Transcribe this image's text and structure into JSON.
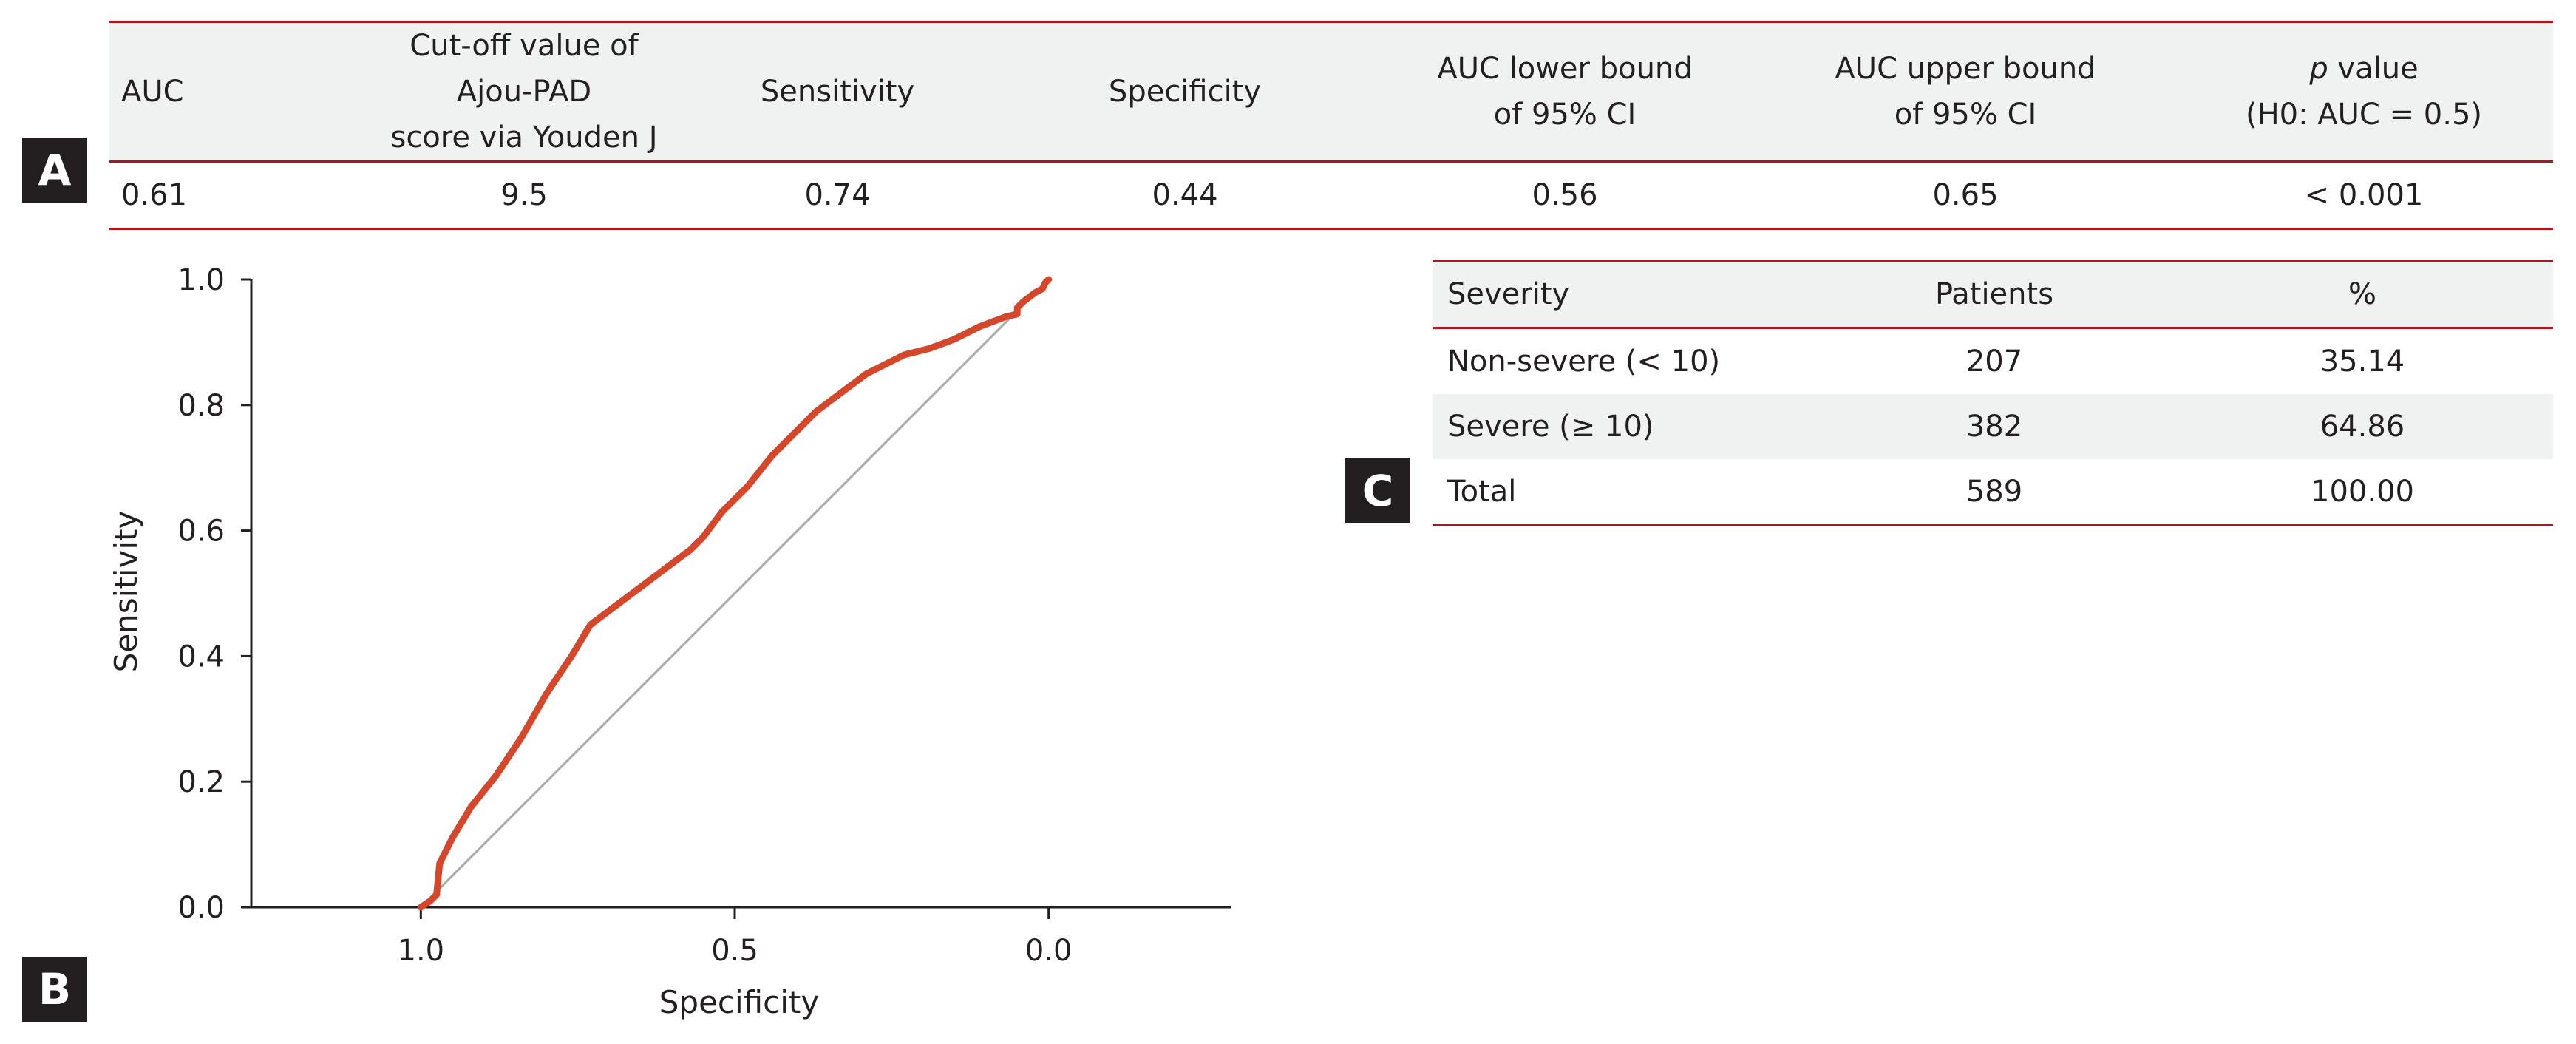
{
  "panels": {
    "a": "A",
    "b": "B",
    "c": "C"
  },
  "table_a": {
    "headers": [
      {
        "line1": "AUC",
        "line2": ""
      },
      {
        "line1": "Cut-off value of Ajou-PAD",
        "line2": "score via Youden J"
      },
      {
        "line1": "Sensitivity",
        "line2": ""
      },
      {
        "line1": "Specificity",
        "line2": ""
      },
      {
        "line1": "AUC lower bound",
        "line2": "of 95% CI"
      },
      {
        "line1": "AUC upper bound",
        "line2": "of 95% CI"
      },
      {
        "line1_italic": "p",
        "line1_rest": " value",
        "line2": "(H0: AUC = 0.5)"
      }
    ],
    "row": [
      "0.61",
      "9.5",
      "0.74",
      "0.44",
      "0.56",
      "0.65",
      "< 0.001"
    ]
  },
  "table_c": {
    "headers": [
      "Severity",
      "Patients",
      "%"
    ],
    "rows": [
      [
        "Non-severe (< 10)",
        "207",
        "35.14"
      ],
      [
        "Severe (≥ 10)",
        "382",
        "64.86"
      ],
      [
        "Total",
        "589",
        "100.00"
      ]
    ]
  },
  "chart_data": {
    "type": "line",
    "xlabel": "Specificity",
    "ylabel": "Sensitivity",
    "xlim": [
      1.27,
      -0.29
    ],
    "ylim": [
      0,
      1
    ],
    "x_reversed": true,
    "x_ticks": [
      "1.0",
      "0.5",
      "0.0"
    ],
    "x_tick_values": [
      1.0,
      0.5,
      0.0
    ],
    "y_ticks": [
      "0.0",
      "0.2",
      "0.4",
      "0.6",
      "0.8",
      "1.0"
    ],
    "y_tick_values": [
      0.0,
      0.2,
      0.4,
      0.6,
      0.8,
      1.0
    ],
    "colors": {
      "roc": "#d4472a",
      "reference": "#a7a9ac",
      "axis": "#231f20"
    },
    "series": [
      {
        "values_x": [
          1.0,
          0.985,
          0.975,
          0.97,
          0.95,
          0.92,
          0.88,
          0.84,
          0.8,
          0.76,
          0.73,
          0.69,
          0.65,
          0.61,
          0.57,
          0.55,
          0.52,
          0.48,
          0.44,
          0.4,
          0.37,
          0.33,
          0.29,
          0.26,
          0.23,
          0.19,
          0.15,
          0.11,
          0.07,
          0.05,
          0.05,
          0.04,
          0.02,
          0.01,
          0.005,
          0.0
        ],
        "values_y": [
          0.0,
          0.01,
          0.02,
          0.07,
          0.11,
          0.16,
          0.21,
          0.27,
          0.34,
          0.4,
          0.45,
          0.48,
          0.51,
          0.54,
          0.57,
          0.59,
          0.63,
          0.67,
          0.72,
          0.76,
          0.79,
          0.82,
          0.85,
          0.865,
          0.88,
          0.89,
          0.905,
          0.925,
          0.94,
          0.945,
          0.955,
          0.965,
          0.98,
          0.985,
          0.995,
          1.0
        ]
      },
      {
        "values_x": [
          1.0,
          0.0
        ],
        "values_y": [
          0.0,
          1.0
        ]
      }
    ]
  }
}
